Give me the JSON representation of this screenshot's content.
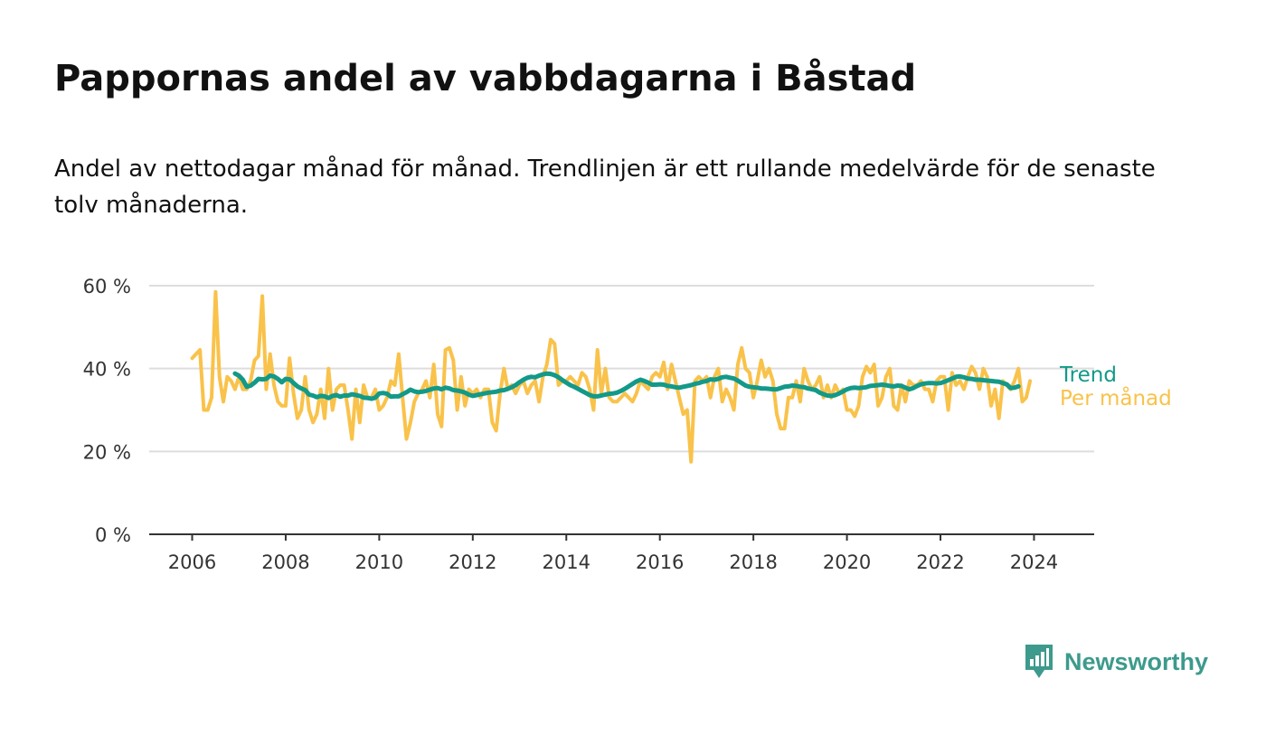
{
  "header": {
    "title": "Pappornas andel av vabbdagarna i Båstad",
    "subtitle": "Andel av nettodagar månad för månad. Trendlinjen är ett rullande medelvärde för de senaste tolv månaderna."
  },
  "brand": {
    "name": "Newsworthy",
    "icon": "newsworthy-logo-icon",
    "color": "#3d9a8c"
  },
  "chart_data": {
    "type": "line",
    "title": "Pappornas andel av vabbdagarna i Båstad",
    "xlabel": "",
    "ylabel": "",
    "x_ticks": [
      2006,
      2008,
      2010,
      2012,
      2014,
      2016,
      2018,
      2020,
      2022,
      2024
    ],
    "x_tick_labels": [
      "2006",
      "2008",
      "2010",
      "2012",
      "2014",
      "2016",
      "2018",
      "2020",
      "2022",
      "2024"
    ],
    "y_ticks": [
      0,
      20,
      40,
      60
    ],
    "y_tick_labels": [
      "0 %",
      "20 %",
      "40 %",
      "60 %"
    ],
    "xlim": [
      2005.3,
      2025.3
    ],
    "ylim": [
      0,
      60
    ],
    "grid": true,
    "legend": "right-end-labels",
    "series": [
      {
        "name": "Per månad",
        "color": "#f9c24a",
        "start": 2006.0,
        "step": 0.0833333,
        "values": [
          42.5,
          43.5,
          44.5,
          30,
          30,
          33,
          58.5,
          38,
          32,
          38,
          37,
          35,
          38,
          35,
          35,
          37,
          42,
          43,
          57.5,
          35,
          43.5,
          36,
          32,
          31,
          31,
          42.5,
          34,
          28,
          30,
          38,
          30,
          27,
          29,
          35,
          28,
          40,
          30,
          35,
          36,
          36,
          30,
          23,
          35,
          27,
          36,
          33,
          33,
          35,
          30,
          31,
          33,
          37,
          36,
          43.5,
          33,
          23,
          27,
          32,
          34,
          35,
          37,
          33,
          41,
          29,
          26,
          44.5,
          45,
          42,
          30,
          38,
          31,
          35,
          34,
          35,
          33,
          35,
          35,
          27,
          25,
          34,
          40,
          35,
          36,
          34,
          36,
          37,
          34,
          36,
          37,
          32,
          38,
          41,
          47,
          46,
          36,
          37,
          37,
          38,
          37,
          36,
          39,
          38,
          35,
          30,
          44.5,
          34,
          40,
          33,
          32,
          32,
          33,
          34,
          33,
          32,
          34,
          37,
          36,
          35,
          38,
          39,
          38,
          41.5,
          35,
          41,
          37,
          33,
          29,
          30,
          17.5,
          37,
          38,
          37,
          38,
          33,
          38,
          40,
          32,
          35,
          33,
          30,
          41,
          45,
          40,
          39,
          33,
          37,
          42,
          38,
          40,
          37,
          29,
          25.5,
          25.5,
          33,
          33,
          37,
          32,
          40,
          37,
          35,
          36,
          38,
          33,
          36,
          33,
          36,
          34,
          35,
          30,
          30,
          28.5,
          31,
          38,
          40.5,
          39,
          41,
          31,
          33,
          38,
          40,
          31,
          30,
          36,
          32,
          37,
          36,
          36,
          37,
          35,
          35,
          32,
          37,
          38,
          38,
          30,
          39,
          36,
          37,
          35,
          38,
          40.5,
          39,
          35,
          40,
          38,
          31,
          35,
          28,
          37,
          36,
          35,
          37,
          40,
          32,
          33,
          37
        ]
      },
      {
        "name": "Trend",
        "color": "#139988",
        "start": 2006.9167,
        "step": 0.0833333,
        "values": [
          38.8,
          38.3,
          37.3,
          35.6,
          35.9,
          36.6,
          37.5,
          37.4,
          37.5,
          38.3,
          38.1,
          37.5,
          36.7,
          37.5,
          37.4,
          36.5,
          35.7,
          35.2,
          34.8,
          33.7,
          33.5,
          33.1,
          33.4,
          33.3,
          32.9,
          33.4,
          33.6,
          33.2,
          33.5,
          33.5,
          33.8,
          33.6,
          33.4,
          33,
          32.9,
          32.7,
          33,
          34,
          34.1,
          33.9,
          33.2,
          33.3,
          33.3,
          33.8,
          34.3,
          34.9,
          34.5,
          34.3,
          34.4,
          34.6,
          34.9,
          35.2,
          35.3,
          35,
          35.4,
          35.2,
          34.8,
          34.7,
          34.5,
          34.2,
          33.7,
          33.4,
          33.6,
          33.8,
          34,
          34.2,
          34.3,
          34.4,
          34.7,
          34.8,
          35.1,
          35.5,
          36,
          36.7,
          37.3,
          37.8,
          38,
          37.9,
          38.3,
          38.6,
          38.8,
          38.7,
          38.4,
          37.9,
          37.2,
          36.6,
          36,
          35.6,
          35.1,
          34.6,
          34.1,
          33.6,
          33.3,
          33.3,
          33.5,
          33.7,
          33.9,
          34,
          34.2,
          34.6,
          35.1,
          35.7,
          36.3,
          36.9,
          37.3,
          37,
          36.6,
          36.1,
          36.1,
          36.2,
          36.1,
          35.8,
          35.7,
          35.5,
          35.4,
          35.6,
          35.8,
          36,
          36.3,
          36.5,
          36.8,
          37,
          37.4,
          37.3,
          37.5,
          37.9,
          38,
          37.8,
          37.6,
          37.1,
          36.5,
          35.9,
          35.6,
          35.5,
          35.4,
          35.2,
          35.2,
          35.1,
          35,
          35,
          35.3,
          35.6,
          35.7,
          35.9,
          35.8,
          35.6,
          35.5,
          35.2,
          35,
          34.8,
          34.2,
          33.8,
          33.5,
          33.4,
          33.6,
          34,
          34.5,
          35,
          35.3,
          35.4,
          35.3,
          35.4,
          35.5,
          35.8,
          35.9,
          36,
          36.1,
          36,
          35.8,
          35.7,
          35.9,
          35.8,
          35.4,
          35,
          35.3,
          35.8,
          36.2,
          36.4,
          36.5,
          36.5,
          36.4,
          36.5,
          36.8,
          37.2,
          37.6,
          38,
          38.1,
          37.9,
          37.6,
          37.5,
          37.3,
          37.3,
          37.2,
          37.1,
          37,
          36.9,
          36.8,
          36.5,
          36.2,
          35.3,
          35.4,
          35.7
        ]
      }
    ]
  }
}
